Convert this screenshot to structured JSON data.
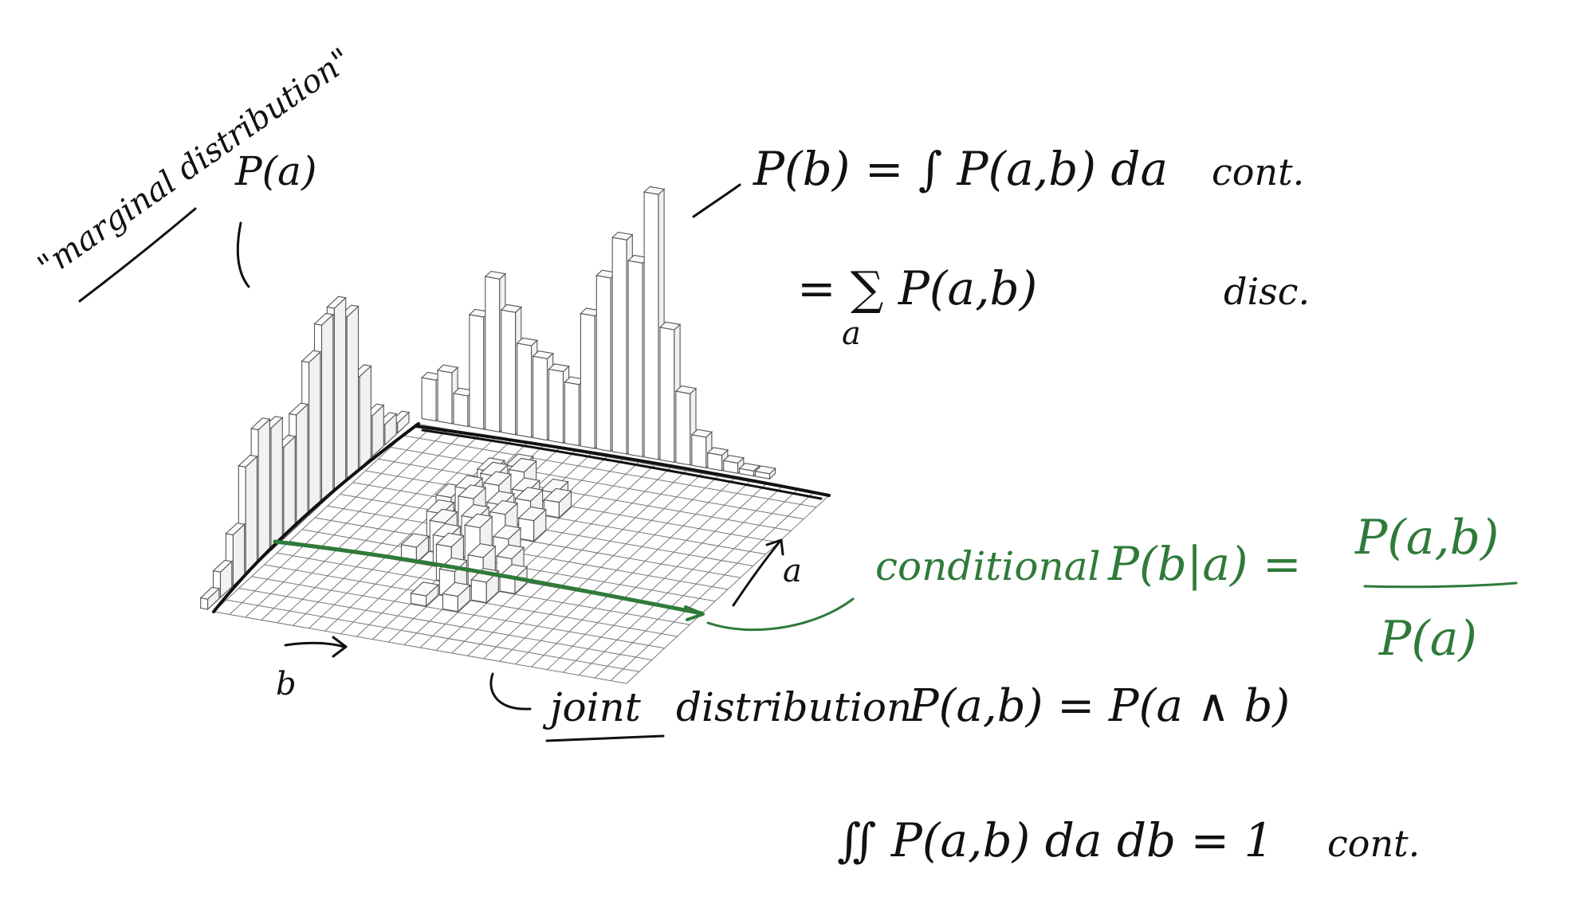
{
  "labels": {
    "marginal_title": "\"marginal distribution\"",
    "marginal_pa": "P(a)",
    "pb_integral": "P(b) = ∫ P(a,b) da",
    "cont_1": "cont.",
    "pb_sum": "= ∑ P(a,b)",
    "sum_index": "a",
    "disc": "disc.",
    "axis_a": "a",
    "axis_b": "b",
    "conditional_word": "conditional",
    "conditional_lhs": "P(b|a) =",
    "conditional_num": "P(a,b)",
    "conditional_den": "P(a)",
    "joint_word": "joint",
    "joint_rest": "distribution",
    "joint_formula": "P(a,b) = P(a ∧ b)",
    "normalization": "∬ P(a,b) da db = 1",
    "cont_2": "cont."
  },
  "colors": {
    "ink": "#111111",
    "green": "#2f7a3a",
    "grid": "#777777",
    "background": "#ffffff"
  },
  "chart_data": {
    "type": "bar",
    "marginal_a_heights": [
      2,
      4,
      8,
      18,
      32,
      36,
      35,
      30,
      22,
      18,
      24,
      26,
      21,
      10,
      5,
      2
    ],
    "marginal_b_heights": [
      8,
      10,
      6,
      22,
      30,
      24,
      18,
      16,
      14,
      12,
      26,
      34,
      42,
      38,
      52,
      26,
      14,
      6,
      3,
      2,
      1,
      1
    ],
    "joint_cells": [
      {
        "ia": 2,
        "ib": 8,
        "h": 3
      },
      {
        "ia": 3,
        "ib": 7,
        "h": 4
      },
      {
        "ia": 3,
        "ib": 9,
        "h": 5
      },
      {
        "ia": 4,
        "ib": 8,
        "h": 6
      },
      {
        "ia": 4,
        "ib": 10,
        "h": 4
      },
      {
        "ia": 5,
        "ib": 6,
        "h": 3
      },
      {
        "ia": 5,
        "ib": 9,
        "h": 7
      },
      {
        "ia": 5,
        "ib": 11,
        "h": 5
      },
      {
        "ia": 6,
        "ib": 8,
        "h": 8
      },
      {
        "ia": 6,
        "ib": 10,
        "h": 6
      },
      {
        "ia": 6,
        "ib": 12,
        "h": 4
      },
      {
        "ia": 7,
        "ib": 7,
        "h": 5
      },
      {
        "ia": 7,
        "ib": 9,
        "h": 9
      },
      {
        "ia": 7,
        "ib": 11,
        "h": 7
      },
      {
        "ia": 8,
        "ib": 8,
        "h": 6
      },
      {
        "ia": 8,
        "ib": 10,
        "h": 8
      },
      {
        "ia": 8,
        "ib": 12,
        "h": 5
      },
      {
        "ia": 9,
        "ib": 9,
        "h": 6
      },
      {
        "ia": 9,
        "ib": 11,
        "h": 9
      },
      {
        "ia": 9,
        "ib": 13,
        "h": 4
      },
      {
        "ia": 10,
        "ib": 10,
        "h": 7
      },
      {
        "ia": 10,
        "ib": 12,
        "h": 6
      },
      {
        "ia": 10,
        "ib": 14,
        "h": 3
      },
      {
        "ia": 11,
        "ib": 11,
        "h": 5
      },
      {
        "ia": 11,
        "ib": 13,
        "h": 4
      },
      {
        "ia": 12,
        "ib": 12,
        "h": 3
      },
      {
        "ia": 4,
        "ib": 12,
        "h": 3
      },
      {
        "ia": 3,
        "ib": 11,
        "h": 2
      },
      {
        "ia": 9,
        "ib": 7,
        "h": 3
      },
      {
        "ia": 12,
        "ib": 10,
        "h": 2
      }
    ],
    "grid_a_cells": 16,
    "grid_b_cells": 26
  }
}
